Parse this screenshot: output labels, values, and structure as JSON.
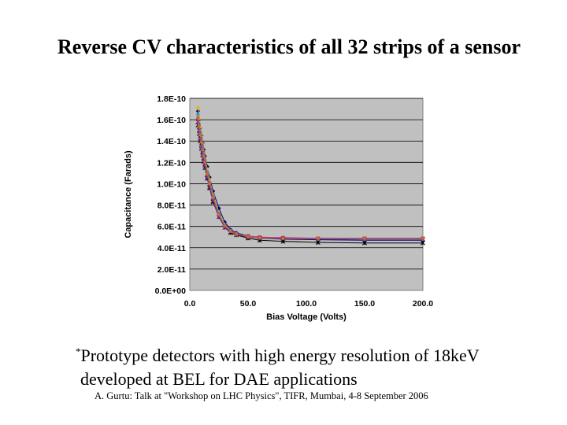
{
  "title": "Reverse CV characteristics of all 32 strips of a sensor",
  "footnote": {
    "marker": "*",
    "line1": "Prototype detectors with high energy resolution of 18keV",
    "line2": "developed at BEL for DAE applications"
  },
  "credit": "A. Gurtu: Talk at \"Workshop on LHC Physics\", TIFR, Mumbai, 4-8 September 2006",
  "chart_data": {
    "type": "line",
    "xlabel": "Bias Voltage (Volts)",
    "ylabel": "Capacitance (Farads)",
    "xlim": [
      0,
      200
    ],
    "ylim": [
      0,
      1.8e-10
    ],
    "x_ticks": [
      "0.0",
      "50.0",
      "100.0",
      "150.0",
      "200.0"
    ],
    "x_tick_values": [
      0,
      50,
      100,
      150,
      200
    ],
    "y_ticks": [
      "0.0E+00",
      "2.0E-11",
      "4.0E-11",
      "6.0E-11",
      "8.0E-11",
      "1.0E-10",
      "1.2E-10",
      "1.4E-10",
      "1.6E-10",
      "1.8E-10"
    ],
    "y_tick_values": [
      0,
      2e-11,
      4e-11,
      6e-11,
      8e-11,
      1e-10,
      1.2e-10,
      1.4e-10,
      1.6e-10,
      1.8e-10
    ],
    "plot_background": "#c0c0c0",
    "grid": "horizontal",
    "series": [
      {
        "color": "#000080",
        "marker": "diamond",
        "x": [
          7,
          8,
          9,
          10,
          11,
          12,
          13,
          15,
          17,
          20,
          25,
          30,
          35,
          40,
          50,
          60,
          80,
          110,
          150,
          200
        ],
        "y": [
          1.68e-10,
          1.6e-10,
          1.52e-10,
          1.45e-10,
          1.38e-10,
          1.32e-10,
          1.26e-10,
          1.16e-10,
          1.06e-10,
          9.3e-11,
          7.7e-11,
          6.4e-11,
          5.7e-11,
          5.4e-11,
          5.1e-11,
          4.9e-11,
          4.8e-11,
          4.75e-11,
          4.7e-11,
          4.7e-11
        ]
      },
      {
        "color": "#cc0066",
        "marker": "square",
        "x": [
          7,
          8,
          9,
          10,
          11,
          12,
          13,
          15,
          17,
          20,
          25,
          30,
          35,
          40,
          50,
          60,
          80,
          110,
          150,
          200
        ],
        "y": [
          1.6e-10,
          1.52e-10,
          1.44e-10,
          1.37e-10,
          1.3e-10,
          1.24e-10,
          1.18e-10,
          1.07e-10,
          9.8e-11,
          8.5e-11,
          7e-11,
          6e-11,
          5.5e-11,
          5.3e-11,
          5.1e-11,
          5e-11,
          4.95e-11,
          4.9e-11,
          4.9e-11,
          4.9e-11
        ]
      },
      {
        "color": "#000000",
        "marker": "star",
        "x": [
          7,
          8,
          9,
          10,
          11,
          12,
          13,
          15,
          17,
          20,
          25,
          30,
          35,
          40,
          50,
          60,
          80,
          110,
          150,
          200
        ],
        "y": [
          1.55e-10,
          1.47e-10,
          1.4e-10,
          1.33e-10,
          1.27e-10,
          1.21e-10,
          1.15e-10,
          1.05e-10,
          9.6e-11,
          8.3e-11,
          6.9e-11,
          5.9e-11,
          5.4e-11,
          5.2e-11,
          4.9e-11,
          4.7e-11,
          4.6e-11,
          4.5e-11,
          4.45e-11,
          4.45e-11
        ]
      },
      {
        "color": "#e8b400",
        "marker": "triangle",
        "x": [
          7,
          8,
          9,
          10,
          11,
          12,
          13,
          15,
          17,
          20,
          25,
          30,
          35,
          40,
          50,
          60,
          80,
          110,
          150,
          200
        ],
        "y": [
          1.72e-10,
          1.62e-10,
          1.53e-10,
          1.45e-10,
          1.38e-10,
          1.31e-10,
          1.25e-10,
          1.14e-10,
          1.04e-10,
          9e-11,
          7.3e-11,
          6.2e-11,
          5.6e-11,
          5.3e-11,
          5.05e-11,
          4.95e-11,
          4.9e-11,
          4.85e-11,
          4.85e-11,
          4.85e-11
        ]
      },
      {
        "color": "#3399cc",
        "marker": "circle",
        "x": [
          7,
          8,
          9,
          10,
          11,
          12,
          13,
          15,
          17,
          20,
          25,
          30,
          35,
          40,
          50,
          60,
          80,
          110,
          150,
          200
        ],
        "y": [
          1.65e-10,
          1.56e-10,
          1.48e-10,
          1.41e-10,
          1.34e-10,
          1.28e-10,
          1.22e-10,
          1.11e-10,
          1.01e-10,
          8.8e-11,
          7.2e-11,
          6.1e-11,
          5.6e-11,
          5.3e-11,
          5.05e-11,
          4.95e-11,
          4.9e-11,
          4.85e-11,
          4.85e-11,
          4.85e-11
        ]
      },
      {
        "color": "#663399",
        "marker": "cross",
        "x": [
          7,
          8,
          9,
          10,
          11,
          12,
          13,
          15,
          17,
          20,
          25,
          30,
          35,
          40,
          50,
          60,
          80,
          110,
          150,
          200
        ],
        "y": [
          1.58e-10,
          1.5e-10,
          1.42e-10,
          1.35e-10,
          1.29e-10,
          1.23e-10,
          1.17e-10,
          1.06e-10,
          9.7e-11,
          8.4e-11,
          6.9e-11,
          5.9e-11,
          5.5e-11,
          5.25e-11,
          5e-11,
          4.9e-11,
          4.85e-11,
          4.8e-11,
          4.8e-11,
          4.8e-11
        ]
      },
      {
        "color": "#cc6633",
        "marker": "circle",
        "x": [
          7,
          8,
          9,
          10,
          11,
          12,
          13,
          15,
          17,
          20,
          25,
          30,
          35,
          40,
          50,
          60,
          80,
          110,
          150,
          200
        ],
        "y": [
          1.62e-10,
          1.54e-10,
          1.46e-10,
          1.39e-10,
          1.32e-10,
          1.26e-10,
          1.2e-10,
          1.09e-10,
          1e-10,
          8.7e-11,
          7.1e-11,
          6.05e-11,
          5.55e-11,
          5.3e-11,
          5.05e-11,
          4.95e-11,
          4.9e-11,
          4.9e-11,
          4.9e-11,
          4.9e-11
        ]
      }
    ]
  }
}
